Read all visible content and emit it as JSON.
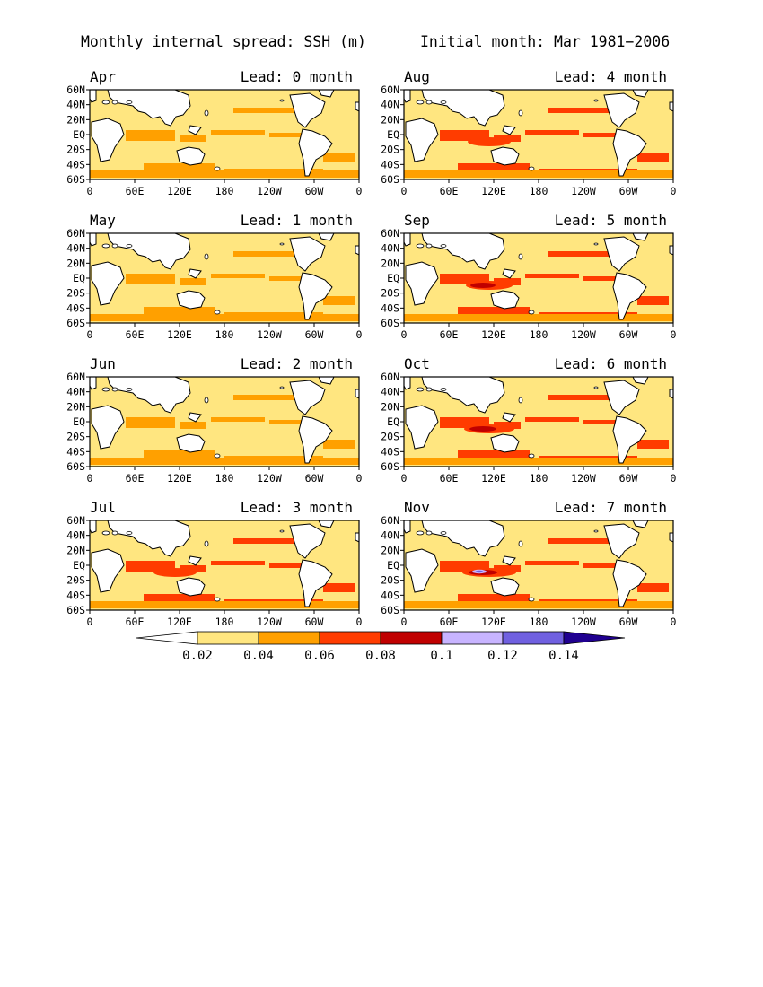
{
  "figure": {
    "title_left": "Monthly internal spread: SSH (m)",
    "title_right": "Initial month: Mar 1981−2006"
  },
  "panels": [
    {
      "month": "Apr",
      "lead": "Lead: 0 month",
      "level": 0
    },
    {
      "month": "Aug",
      "lead": "Lead: 4 month",
      "level": 3
    },
    {
      "month": "May",
      "lead": "Lead: 1 month",
      "level": 1
    },
    {
      "month": "Sep",
      "lead": "Lead: 5 month",
      "level": 4
    },
    {
      "month": "Jun",
      "lead": "Lead: 2 month",
      "level": 2
    },
    {
      "month": "Oct",
      "lead": "Lead: 6 month",
      "level": 5
    },
    {
      "month": "Jul",
      "lead": "Lead: 3 month",
      "level": 3
    },
    {
      "month": "Nov",
      "lead": "Lead: 7 month",
      "level": 6
    }
  ],
  "axes": {
    "y_ticks": [
      "60N",
      "40N",
      "20N",
      "EQ",
      "20S",
      "40S",
      "60S"
    ],
    "x_ticks": [
      "0",
      "60E",
      "120E",
      "180",
      "120W",
      "60W",
      "0"
    ]
  },
  "colorbar": {
    "labels": [
      "0.02",
      "0.04",
      "0.06",
      "0.08",
      "0.1",
      "0.12",
      "0.14"
    ],
    "colors": [
      "#ffffff",
      "#ffe680",
      "#ffa000",
      "#ff3c00",
      "#c00000",
      "#c8b4ff",
      "#7060e0",
      "#200090"
    ]
  },
  "land_color": "#ffffff",
  "ocean_base_color": "#ffe680"
}
